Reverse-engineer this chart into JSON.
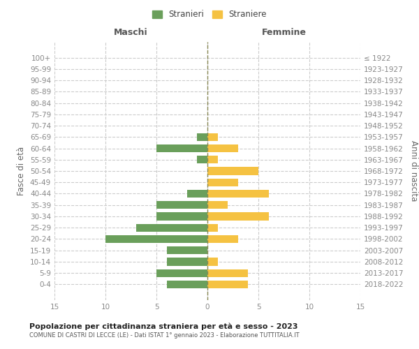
{
  "age_groups": [
    "100+",
    "95-99",
    "90-94",
    "85-89",
    "80-84",
    "75-79",
    "70-74",
    "65-69",
    "60-64",
    "55-59",
    "50-54",
    "45-49",
    "40-44",
    "35-39",
    "30-34",
    "25-29",
    "20-24",
    "15-19",
    "10-14",
    "5-9",
    "0-4"
  ],
  "birth_years": [
    "≤ 1922",
    "1923-1927",
    "1928-1932",
    "1933-1937",
    "1938-1942",
    "1943-1947",
    "1948-1952",
    "1953-1957",
    "1958-1962",
    "1963-1967",
    "1968-1972",
    "1973-1977",
    "1978-1982",
    "1983-1987",
    "1988-1992",
    "1993-1997",
    "1998-2002",
    "2003-2007",
    "2008-2012",
    "2013-2017",
    "2018-2022"
  ],
  "maschi": [
    0,
    0,
    0,
    0,
    0,
    0,
    0,
    1,
    5,
    1,
    0,
    0,
    2,
    5,
    5,
    7,
    10,
    4,
    4,
    5,
    4
  ],
  "femmine": [
    0,
    0,
    0,
    0,
    0,
    0,
    0,
    1,
    3,
    1,
    5,
    3,
    6,
    2,
    6,
    1,
    3,
    0,
    1,
    4,
    4
  ],
  "color_maschi": "#6a9f5b",
  "color_femmine": "#f5c242",
  "title": "Popolazione per cittadinanza straniera per età e sesso - 2023",
  "subtitle": "COMUNE DI CASTRI DI LECCE (LE) - Dati ISTAT 1° gennaio 2023 - Elaborazione TUTTITALIA.IT",
  "xlabel_left": "Maschi",
  "xlabel_right": "Femmine",
  "ylabel_left": "Fasce di età",
  "ylabel_right": "Anni di nascita",
  "legend_stranieri": "Stranieri",
  "legend_straniere": "Straniere",
  "xlim": 15,
  "background_color": "#ffffff",
  "grid_color": "#cccccc",
  "tick_color": "#888888"
}
